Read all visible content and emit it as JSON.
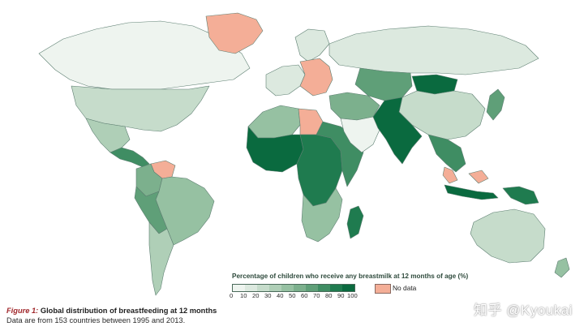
{
  "colors": {
    "bin_0_10": "#eef4ef",
    "bin_10_20": "#dce9df",
    "bin_20_30": "#c6dccb",
    "bin_30_40": "#afcfb7",
    "bin_40_50": "#96c1a2",
    "bin_50_60": "#7cb08d",
    "bin_60_70": "#5f9f78",
    "bin_70_80": "#3f8d63",
    "bin_80_90": "#1f7b4f",
    "bin_90_100": "#0a6a3f",
    "no_data": "#f4ae97",
    "water": "#ffffff",
    "caption_figure": "#a0272b"
  },
  "legend": {
    "title": "Percentage of children who receive any breastmilk at 12 months of age (%)",
    "ticks": [
      "0",
      "10",
      "20",
      "30",
      "40",
      "50",
      "60",
      "70",
      "80",
      "90",
      "100"
    ],
    "no_data_label": "No data"
  },
  "caption": {
    "figure_label": "Figure 1:",
    "title": " Global distribution of breastfeeding at 12 months",
    "note": "Data are from 153 countries between 1995 and 2013."
  },
  "watermark": "知乎 @Kyoukai",
  "regions": [
    {
      "name": "greenland",
      "shade": "no_data"
    },
    {
      "name": "canada",
      "shade": "bin_0_10"
    },
    {
      "name": "united-states",
      "shade": "bin_20_30"
    },
    {
      "name": "mexico",
      "shade": "bin_30_40"
    },
    {
      "name": "central-america",
      "shade": "bin_70_80"
    },
    {
      "name": "venezuela",
      "shade": "no_data"
    },
    {
      "name": "colombia",
      "shade": "bin_50_60"
    },
    {
      "name": "brazil",
      "shade": "bin_40_50"
    },
    {
      "name": "peru-bolivia",
      "shade": "bin_60_70"
    },
    {
      "name": "argentina-chile",
      "shade": "bin_30_40"
    },
    {
      "name": "western-europe",
      "shade": "bin_10_20"
    },
    {
      "name": "eastern-europe",
      "shade": "no_data"
    },
    {
      "name": "scandinavia",
      "shade": "bin_10_20"
    },
    {
      "name": "russia",
      "shade": "bin_10_20"
    },
    {
      "name": "north-africa",
      "shade": "bin_40_50"
    },
    {
      "name": "libya",
      "shade": "no_data"
    },
    {
      "name": "west-africa",
      "shade": "bin_90_100"
    },
    {
      "name": "central-africa",
      "shade": "bin_80_90"
    },
    {
      "name": "east-africa",
      "shade": "bin_70_80"
    },
    {
      "name": "southern-africa",
      "shade": "bin_40_50"
    },
    {
      "name": "madagascar",
      "shade": "bin_80_90"
    },
    {
      "name": "arabian-peninsula",
      "shade": "bin_0_10"
    },
    {
      "name": "middle-east",
      "shade": "bin_50_60"
    },
    {
      "name": "central-asia",
      "shade": "bin_60_70"
    },
    {
      "name": "mongolia",
      "shade": "bin_90_100"
    },
    {
      "name": "china",
      "shade": "bin_20_30"
    },
    {
      "name": "south-asia",
      "shade": "bin_90_100"
    },
    {
      "name": "southeast-asia",
      "shade": "bin_70_80"
    },
    {
      "name": "malaysia",
      "shade": "no_data"
    },
    {
      "name": "indonesia",
      "shade": "bin_90_100"
    },
    {
      "name": "japan-korea",
      "shade": "bin_60_70"
    },
    {
      "name": "australia",
      "shade": "bin_20_30"
    },
    {
      "name": "new-zealand",
      "shade": "bin_40_50"
    },
    {
      "name": "papua-new-guinea",
      "shade": "bin_80_90"
    }
  ]
}
